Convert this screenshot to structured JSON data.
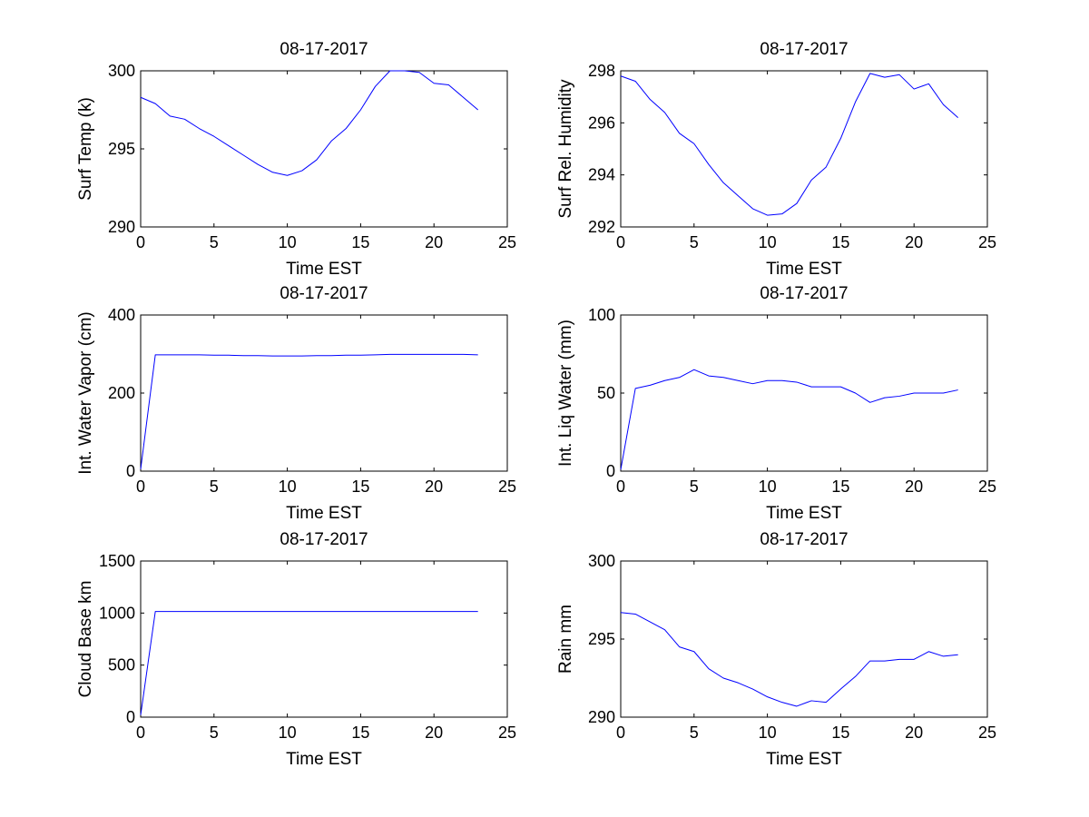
{
  "figure": {
    "background": "#ffffff",
    "line_color": "#0000ff",
    "axis_color": "#000000"
  },
  "chart_data": [
    {
      "type": "line",
      "title": "08-17-2017",
      "xlabel": "Time EST",
      "ylabel": "Surf Temp (k)",
      "xlim": [
        0,
        25
      ],
      "ylim": [
        290,
        300
      ],
      "xticks": [
        0,
        5,
        10,
        15,
        20,
        25
      ],
      "yticks": [
        290,
        295,
        300
      ],
      "x": [
        0,
        1,
        2,
        3,
        4,
        5,
        6,
        7,
        8,
        9,
        10,
        11,
        12,
        13,
        14,
        15,
        16,
        17,
        18,
        19,
        20,
        21,
        22,
        23
      ],
      "y": [
        298.3,
        297.9,
        297.1,
        296.9,
        296.3,
        295.8,
        295.2,
        294.6,
        294.0,
        293.5,
        293.3,
        293.6,
        294.3,
        295.5,
        296.3,
        297.5,
        299.0,
        300.0,
        300.0,
        299.9,
        299.2,
        299.1,
        298.3,
        297.5
      ],
      "grid": false
    },
    {
      "type": "line",
      "title": "08-17-2017",
      "xlabel": "Time EST",
      "ylabel": "Surf Rel. Humidity",
      "xlim": [
        0,
        25
      ],
      "ylim": [
        292,
        298
      ],
      "xticks": [
        0,
        5,
        10,
        15,
        20,
        25
      ],
      "yticks": [
        292,
        294,
        296,
        298
      ],
      "x": [
        0,
        1,
        2,
        3,
        4,
        5,
        6,
        7,
        8,
        9,
        10,
        11,
        12,
        13,
        14,
        15,
        16,
        17,
        18,
        19,
        20,
        21,
        22,
        23
      ],
      "y": [
        297.8,
        297.6,
        296.9,
        296.4,
        295.6,
        295.2,
        294.4,
        293.7,
        293.2,
        292.7,
        292.45,
        292.5,
        292.9,
        293.8,
        294.3,
        295.4,
        296.8,
        297.9,
        297.75,
        297.85,
        297.3,
        297.5,
        296.7,
        296.2
      ],
      "grid": false
    },
    {
      "type": "line",
      "title": "08-17-2017",
      "xlabel": "Time EST",
      "ylabel": "Int. Water Vapor (cm)",
      "xlim": [
        0,
        25
      ],
      "ylim": [
        0,
        400
      ],
      "xticks": [
        0,
        5,
        10,
        15,
        20,
        25
      ],
      "yticks": [
        0,
        200,
        400
      ],
      "x": [
        0,
        1,
        2,
        3,
        4,
        5,
        6,
        7,
        8,
        9,
        10,
        11,
        12,
        13,
        14,
        15,
        16,
        17,
        18,
        19,
        20,
        21,
        22,
        23
      ],
      "y": [
        5,
        298,
        298,
        298,
        298,
        297,
        297,
        296,
        296,
        295,
        295,
        295,
        296,
        296,
        297,
        297,
        298,
        299,
        299,
        299,
        299,
        299,
        299,
        298
      ],
      "grid": false
    },
    {
      "type": "line",
      "title": "08-17-2017",
      "xlabel": "Time EST",
      "ylabel": "Int. Liq Water (mm)",
      "xlim": [
        0,
        25
      ],
      "ylim": [
        0,
        100
      ],
      "xticks": [
        0,
        5,
        10,
        15,
        20,
        25
      ],
      "yticks": [
        0,
        50,
        100
      ],
      "x": [
        0,
        1,
        2,
        3,
        4,
        5,
        6,
        7,
        8,
        9,
        10,
        11,
        12,
        13,
        14,
        15,
        16,
        17,
        18,
        19,
        20,
        21,
        22,
        23
      ],
      "y": [
        1,
        53,
        55,
        58,
        60,
        65,
        61,
        60,
        58,
        56,
        58,
        58,
        57,
        54,
        54,
        54,
        50,
        44,
        47,
        48,
        50,
        50,
        50,
        52
      ],
      "grid": false
    },
    {
      "type": "line",
      "title": "08-17-2017",
      "xlabel": "Time EST",
      "ylabel": "Cloud Base km",
      "xlim": [
        0,
        25
      ],
      "ylim": [
        0,
        1500
      ],
      "xticks": [
        0,
        5,
        10,
        15,
        20,
        25
      ],
      "yticks": [
        0,
        500,
        1000,
        1500
      ],
      "x": [
        0,
        1,
        2,
        3,
        4,
        5,
        6,
        7,
        8,
        9,
        10,
        11,
        12,
        13,
        14,
        15,
        16,
        17,
        18,
        19,
        20,
        21,
        22,
        23
      ],
      "y": [
        20,
        1015,
        1015,
        1015,
        1015,
        1015,
        1015,
        1015,
        1015,
        1015,
        1015,
        1015,
        1015,
        1015,
        1015,
        1015,
        1015,
        1015,
        1015,
        1015,
        1015,
        1015,
        1015,
        1015
      ],
      "grid": false
    },
    {
      "type": "line",
      "title": "08-17-2017",
      "xlabel": "Time EST",
      "ylabel": "Rain mm",
      "xlim": [
        0,
        25
      ],
      "ylim": [
        290,
        300
      ],
      "xticks": [
        0,
        5,
        10,
        15,
        20,
        25
      ],
      "yticks": [
        290,
        295,
        300
      ],
      "x": [
        0,
        1,
        2,
        3,
        4,
        5,
        6,
        7,
        8,
        9,
        10,
        11,
        12,
        13,
        14,
        15,
        16,
        17,
        18,
        19,
        20,
        21,
        22,
        23
      ],
      "y": [
        296.7,
        296.6,
        296.1,
        295.6,
        294.5,
        294.2,
        293.1,
        292.5,
        292.2,
        291.8,
        291.3,
        290.95,
        290.7,
        291.05,
        290.95,
        291.8,
        292.6,
        293.6,
        293.6,
        293.7,
        293.7,
        294.2,
        293.9,
        294.0
      ],
      "grid": false
    }
  ]
}
